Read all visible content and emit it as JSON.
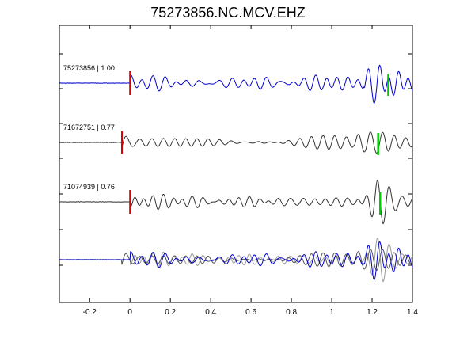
{
  "chart_data": {
    "type": "line",
    "title": "75273856.NC.MCV.EHZ",
    "xlabel": "",
    "ylabel": "",
    "xlim": [
      -0.35,
      1.4
    ],
    "xticks": [
      -0.2,
      0,
      0.2,
      0.4,
      0.6,
      0.8,
      1,
      1.2,
      1.4
    ],
    "xtick_labels": [
      "-0.2",
      "0",
      "0.2",
      "0.4",
      "0.6",
      "0.8",
      "1",
      "1.2",
      "1.4"
    ],
    "grid": false,
    "traces": [
      {
        "name": "75273856 | 1.00",
        "id": "75273856",
        "cc": 1.0,
        "color": "#0000cc",
        "p_pick": 0.0,
        "s_pick": 1.28,
        "seed": 1,
        "amp": 1.0
      },
      {
        "name": "71672751 | 0.77",
        "id": "71672751",
        "cc": 0.77,
        "color": "#333333",
        "p_pick": -0.04,
        "s_pick": 1.23,
        "seed": 2,
        "amp": 0.85
      },
      {
        "name": "71074939 | 0.76",
        "id": "71074939",
        "cc": 0.76,
        "color": "#333333",
        "p_pick": 0.0,
        "s_pick": 1.24,
        "seed": 3,
        "amp": 0.85
      }
    ],
    "pick_colors": {
      "p": "#dd0000",
      "s": "#00cc00"
    },
    "stack": {
      "label": "overlay",
      "colors": [
        "#0000cc",
        "#555555",
        "#999999"
      ]
    }
  }
}
